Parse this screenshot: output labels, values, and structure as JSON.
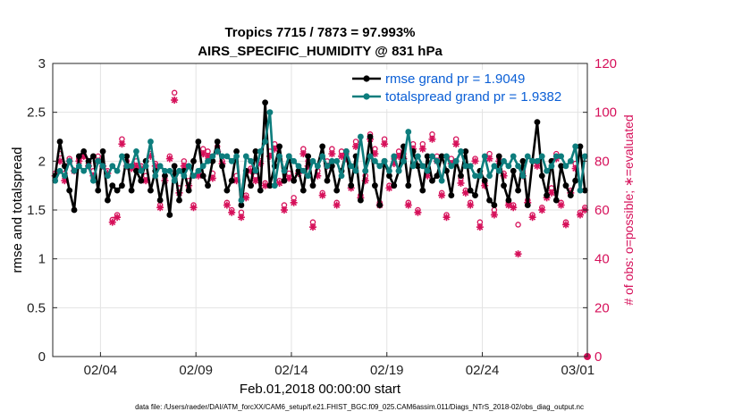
{
  "chart_data": {
    "type": "line",
    "title": "Tropics 7715 / 7873 = 97.993%",
    "subtitle": "AIRS_SPECIFIC_HUMIDITY @ 831 hPa",
    "xlabel": "Feb.01,2018 00:00:00 start",
    "ylabel": "rmse and totalspread",
    "ylabel_right": "# of obs: o=possible; ∗=evaluated",
    "xlim": [
      0,
      28
    ],
    "ylim": [
      0,
      3
    ],
    "ylim_right": [
      0,
      120
    ],
    "x_ticks": [
      {
        "x": 2.5,
        "label": "02/04"
      },
      {
        "x": 7.5,
        "label": "02/09"
      },
      {
        "x": 12.5,
        "label": "02/14"
      },
      {
        "x": 17.5,
        "label": "02/19"
      },
      {
        "x": 22.5,
        "label": "02/24"
      },
      {
        "x": 27.5,
        "label": "03/01"
      }
    ],
    "y_ticks": [
      "0",
      "0.5",
      "1",
      "1.5",
      "2",
      "2.5",
      "3"
    ],
    "y_ticks_right": [
      "0",
      "20",
      "40",
      "60",
      "80",
      "100",
      "120"
    ],
    "grid": true,
    "x": [
      0.125,
      0.375,
      0.625,
      0.875,
      1.125,
      1.375,
      1.625,
      1.875,
      2.125,
      2.375,
      2.625,
      2.875,
      3.125,
      3.375,
      3.625,
      3.875,
      4.125,
      4.375,
      4.625,
      4.875,
      5.125,
      5.375,
      5.625,
      5.875,
      6.125,
      6.375,
      6.625,
      6.875,
      7.125,
      7.375,
      7.625,
      7.875,
      8.125,
      8.375,
      8.625,
      8.875,
      9.125,
      9.375,
      9.625,
      9.875,
      10.125,
      10.375,
      10.625,
      10.875,
      11.125,
      11.375,
      11.625,
      11.875,
      12.125,
      12.375,
      12.625,
      12.875,
      13.125,
      13.375,
      13.625,
      13.875,
      14.125,
      14.375,
      14.625,
      14.875,
      15.125,
      15.375,
      15.625,
      15.875,
      16.125,
      16.375,
      16.625,
      16.875,
      17.125,
      17.375,
      17.625,
      17.875,
      18.125,
      18.375,
      18.625,
      18.875,
      19.125,
      19.375,
      19.625,
      19.875,
      20.125,
      20.375,
      20.625,
      20.875,
      21.125,
      21.375,
      21.625,
      21.875,
      22.125,
      22.375,
      22.625,
      22.875,
      23.125,
      23.375,
      23.625,
      23.875,
      24.125,
      24.375,
      24.625,
      24.875,
      25.125,
      25.375,
      25.625,
      25.875,
      26.125,
      26.375,
      26.625,
      26.875,
      27.125,
      27.375,
      27.625,
      27.875
    ],
    "series": [
      {
        "name": "rmse",
        "legend": "rmse grand pr = 1.9049",
        "color": "#000000",
        "axis": "left",
        "values": [
          1.85,
          2.2,
          1.95,
          1.7,
          1.5,
          2.05,
          2.1,
          2.0,
          2.05,
          1.7,
          2.1,
          1.6,
          1.75,
          1.7,
          1.75,
          2.05,
          1.7,
          1.9,
          1.8,
          2.0,
          1.7,
          1.9,
          1.6,
          1.85,
          1.45,
          1.95,
          1.6,
          1.9,
          1.7,
          2.0,
          2.2,
          1.85,
          1.75,
          2.0,
          2.2,
          1.95,
          1.7,
          1.8,
          2.1,
          1.55,
          1.9,
          1.75,
          2.1,
          1.7,
          2.6,
          1.75,
          1.95,
          2.15,
          1.8,
          2.05,
          1.8,
          1.9,
          1.7,
          2.05,
          1.75,
          1.95,
          2.15,
          1.8,
          1.95,
          1.7,
          1.9,
          2.1,
          1.75,
          2.05,
          1.6,
          1.9,
          2.25,
          1.75,
          1.55,
          2.0,
          1.85,
          1.75,
          1.9,
          2.15,
          1.75,
          2.1,
          1.95,
          1.7,
          2.05,
          1.8,
          1.85,
          2.05,
          1.9,
          1.65,
          2.0,
          1.85,
          2.1,
          1.7,
          1.65,
          1.9,
          1.8,
          1.6,
          1.55,
          2.05,
          1.75,
          1.6,
          1.9,
          1.7,
          2.0,
          1.55,
          2.0,
          2.4,
          1.85,
          1.65,
          2.0,
          1.6,
          1.95,
          1.75,
          1.65,
          1.8,
          2.15,
          1.7
        ]
      },
      {
        "name": "totalspread",
        "legend": "totalspread grand pr = 1.9382",
        "color": "#0d7d7d",
        "axis": "left",
        "values": [
          1.8,
          1.9,
          1.85,
          2.0,
          1.9,
          1.95,
          1.9,
          1.95,
          1.8,
          2.0,
          1.95,
          1.85,
          1.95,
          1.9,
          2.05,
          1.95,
          1.95,
          2.1,
          1.9,
          1.95,
          2.2,
          1.85,
          1.95,
          1.9,
          1.9,
          1.8,
          1.9,
          1.85,
          1.95,
          1.85,
          1.9,
          1.95,
          2.0,
          2.05,
          2.1,
          2.05,
          2.05,
          2.0,
          2.05,
          1.6,
          2.05,
          2.0,
          1.9,
          2.1,
          2.2,
          2.5,
          1.75,
          2.05,
          1.9,
          2.05,
          2.0,
          1.95,
          1.9,
          1.85,
          2.0,
          1.95,
          2.05,
          1.95,
          2.0,
          2.0,
          1.85,
          2.1,
          1.95,
          1.9,
          2.25,
          1.9,
          2.05,
          2.0,
          1.95,
          2.0,
          1.9,
          2.05,
          1.9,
          2.0,
          2.3,
          1.95,
          2.05,
          1.95,
          1.9,
          2.05,
          2.0,
          1.8,
          2.05,
          1.95,
          2.0,
          2.1,
          1.95,
          1.95,
          1.85,
          1.85,
          2.05,
          1.85,
          1.95,
          1.9,
          2.0,
          1.95,
          2.05,
          1.95,
          1.85,
          2.05,
          2.0,
          2.0,
          2.05,
          1.9,
          1.95,
          2.05,
          2.05,
          1.95,
          2.0,
          2.15,
          1.7,
          2.05
        ]
      },
      {
        "name": "obs possible",
        "marker": "o",
        "color": "#d6105a",
        "axis": "right",
        "values": [
          75,
          83,
          75,
          81,
          76,
          81,
          82,
          79,
          76,
          82,
          78,
          76,
          56,
          58,
          89,
          80,
          78,
          80,
          78,
          74,
          83,
          79,
          62,
          74,
          82,
          108,
          69,
          80,
          72,
          62,
          75,
          85,
          84,
          75,
          86,
          80,
          63,
          60,
          74,
          59,
          66,
          77,
          74,
          80,
          71,
          84,
          87,
          72,
          62,
          75,
          65,
          76,
          85,
          80,
          55,
          76,
          67,
          80,
          85,
          63,
          84,
          83,
          70,
          88,
          66,
          74,
          91,
          85,
          63,
          89,
          70,
          81,
          84,
          83,
          63,
          87,
          60,
          87,
          76,
          91,
          82,
          67,
          58,
          81,
          89,
          73,
          68,
          63,
          81,
          55,
          71,
          83,
          60,
          82,
          75,
          63,
          62,
          54,
          76,
          64,
          58,
          80,
          61,
          66,
          69,
          83,
          63,
          55,
          68,
          79,
          59,
          61
        ]
      },
      {
        "name": "obs evaluated",
        "marker": "*",
        "color": "#d6105a",
        "axis": "right",
        "values": [
          74,
          80,
          72,
          80,
          76,
          80,
          82,
          78,
          74,
          80,
          78,
          75,
          55,
          57,
          87,
          78,
          77,
          78,
          77,
          72,
          82,
          78,
          61,
          72,
          81,
          105,
          67,
          78,
          70,
          61,
          74,
          83,
          82,
          73,
          84,
          79,
          62,
          59,
          72,
          57,
          65,
          76,
          72,
          79,
          70,
          82,
          85,
          71,
          60,
          73,
          63,
          75,
          83,
          78,
          53,
          74,
          66,
          78,
          83,
          62,
          82,
          81,
          69,
          86,
          65,
          72,
          89,
          83,
          62,
          87,
          69,
          79,
          82,
          81,
          62,
          85,
          59,
          85,
          74,
          89,
          80,
          66,
          57,
          79,
          87,
          71,
          67,
          62,
          80,
          53,
          70,
          81,
          58,
          80,
          74,
          62,
          61,
          42,
          74,
          63,
          57,
          78,
          60,
          65,
          67,
          81,
          62,
          54,
          67,
          77,
          58,
          60
        ]
      }
    ],
    "end_marker": {
      "x": 28,
      "possible": 0,
      "evaluated": 0
    },
    "footnote": "data file: /Users/raeder/DAI/ATM_forcXX/CAM6_setup/f.e21.FHIST_BGC.f09_025.CAM6assim.011/Diags_NTrS_2018-02/obs_diag_output.nc"
  }
}
